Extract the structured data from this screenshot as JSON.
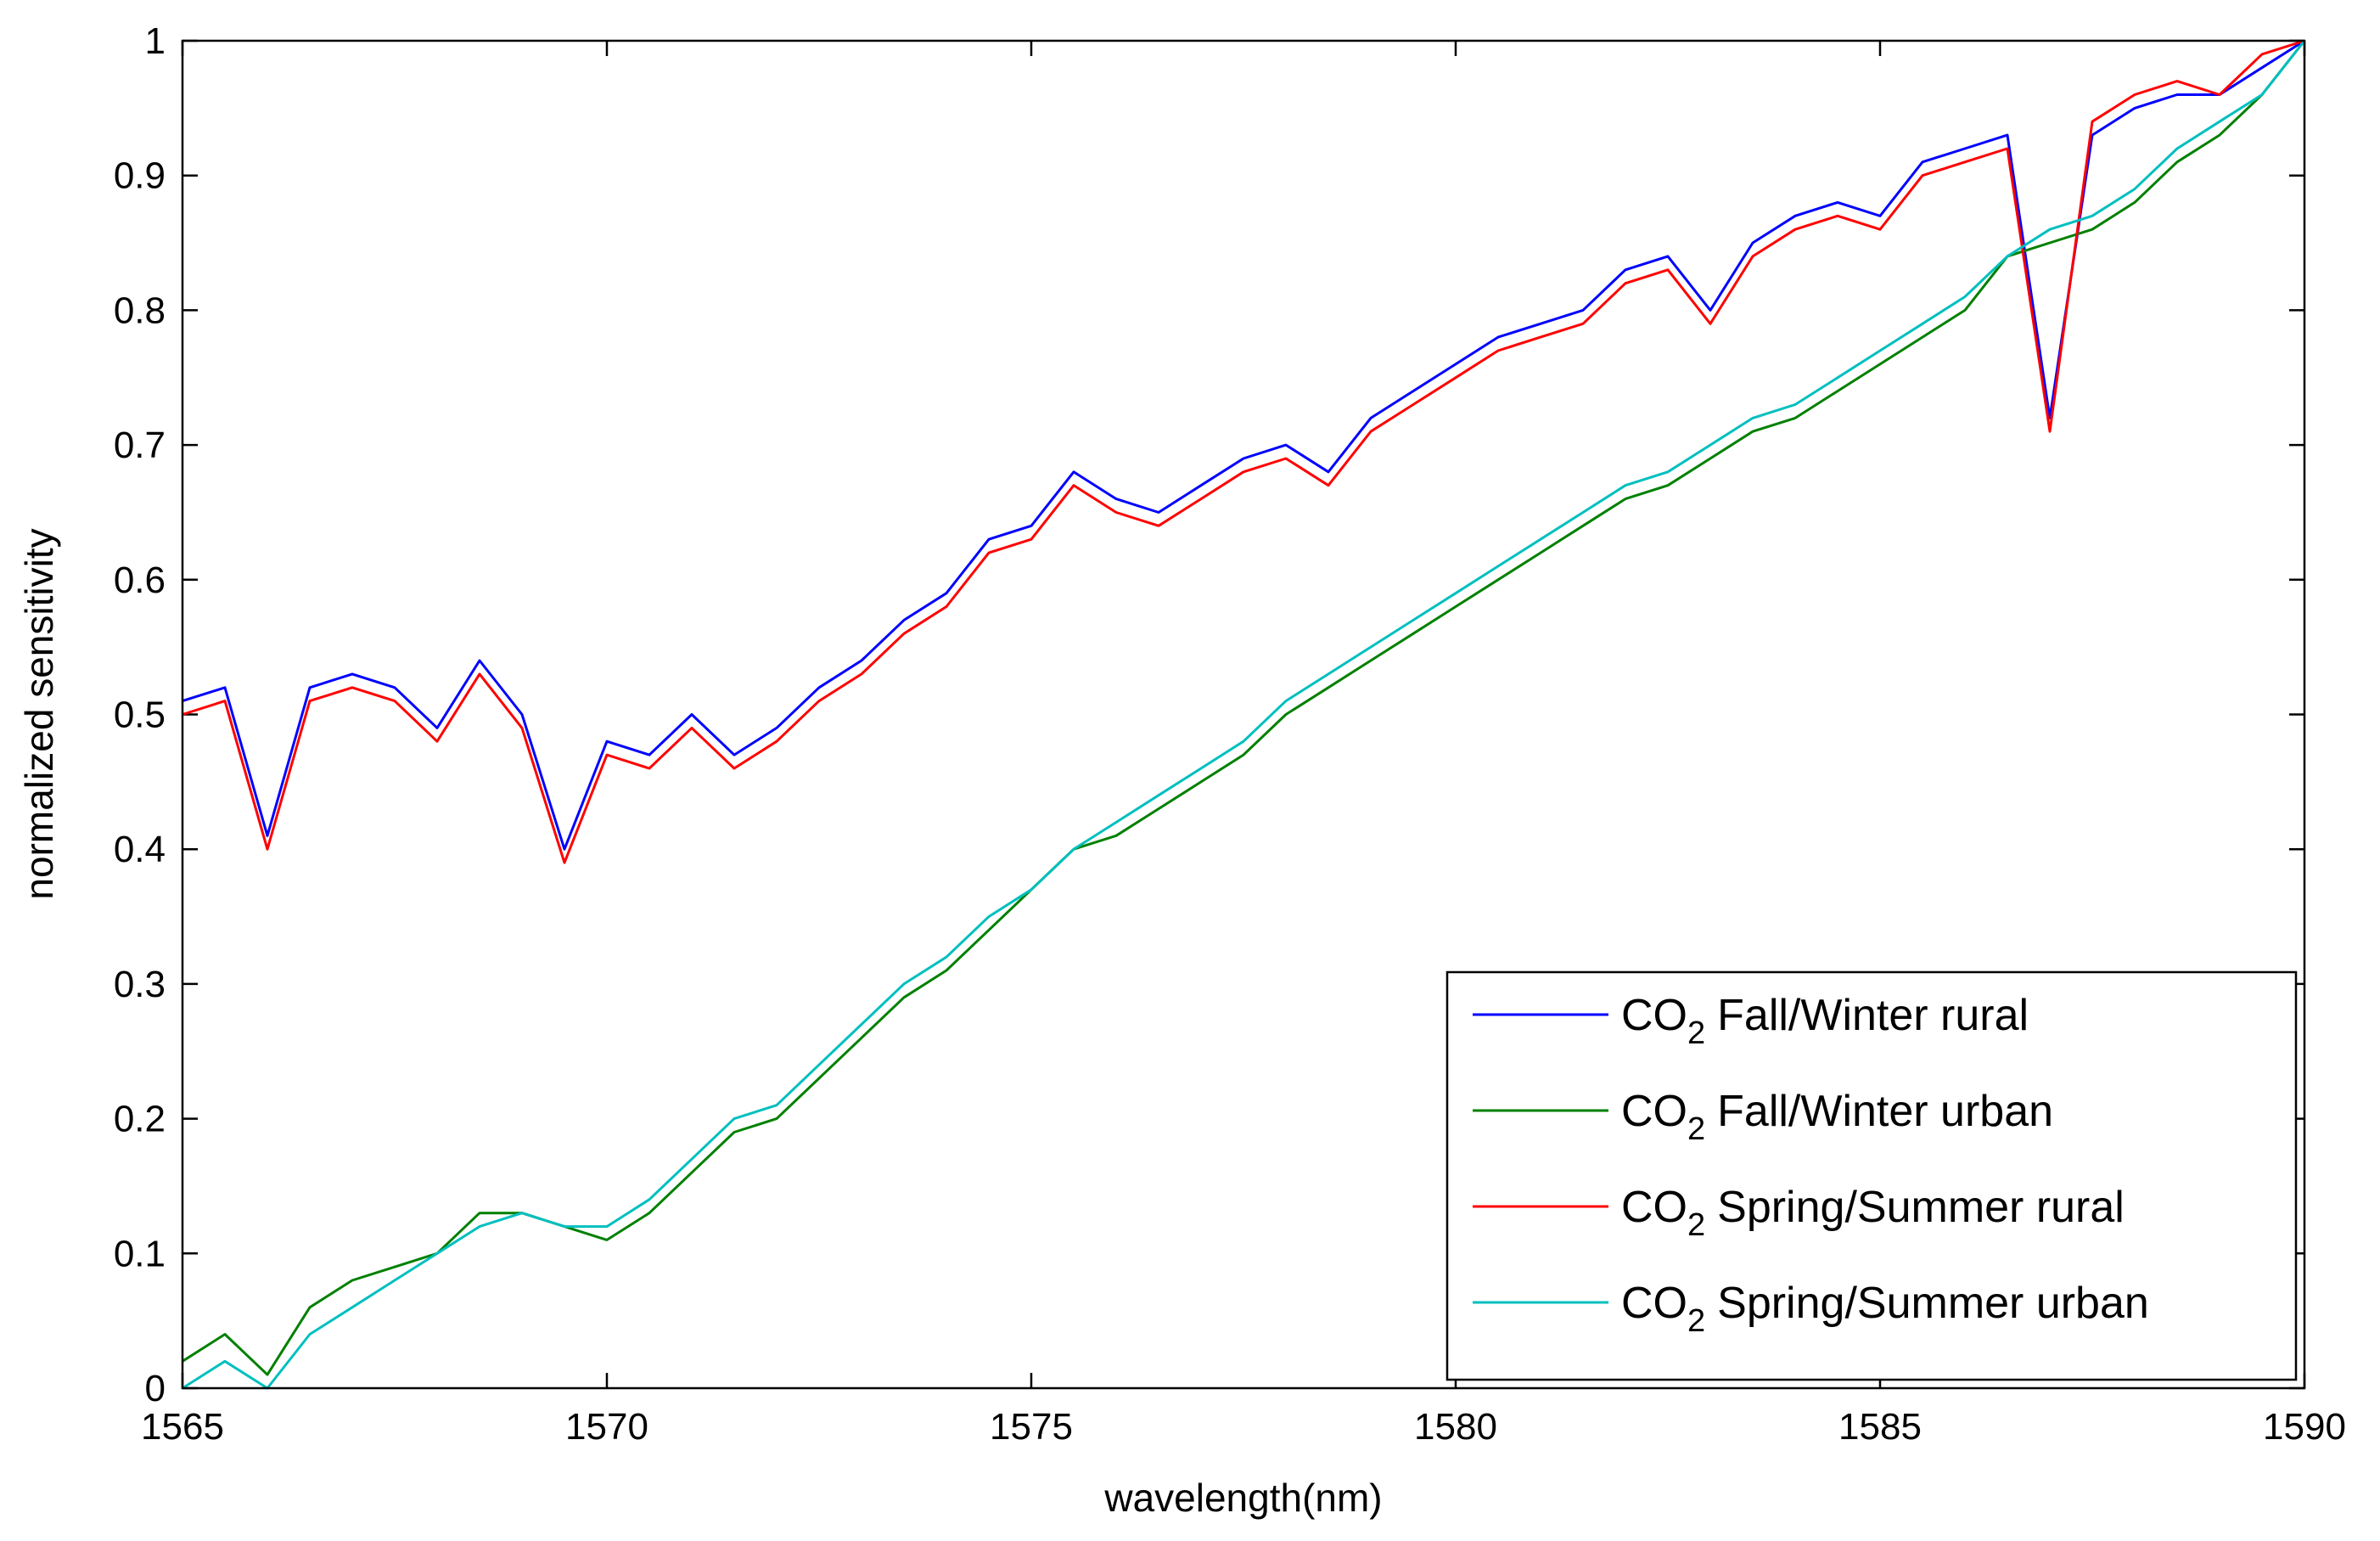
{
  "chart_data": {
    "type": "line",
    "title": "",
    "xlabel": "wavelength(nm)",
    "ylabel": "normalized sensitivity",
    "xlim": [
      1565,
      1590
    ],
    "ylim": [
      0,
      1
    ],
    "grid": false,
    "legend_position": "bottom-right",
    "x_ticks": [
      "1565",
      "1570",
      "1575",
      "1580",
      "1585",
      "1590"
    ],
    "y_ticks": [
      "0",
      "0.1",
      "0.2",
      "0.3",
      "0.4",
      "0.5",
      "0.6",
      "0.7",
      "0.8",
      "0.9",
      "1"
    ],
    "x": [
      1565.0,
      1565.5,
      1566.0,
      1566.5,
      1567.0,
      1567.5,
      1568.0,
      1568.5,
      1569.0,
      1569.5,
      1570.0,
      1570.5,
      1571.0,
      1571.5,
      1572.0,
      1572.5,
      1573.0,
      1573.5,
      1574.0,
      1574.5,
      1575.0,
      1575.5,
      1576.0,
      1576.5,
      1577.0,
      1577.5,
      1578.0,
      1578.5,
      1579.0,
      1579.5,
      1580.0,
      1580.5,
      1581.0,
      1581.5,
      1582.0,
      1582.5,
      1583.0,
      1583.5,
      1584.0,
      1584.5,
      1585.0,
      1585.5,
      1586.0,
      1586.5,
      1587.0,
      1587.5,
      1588.0,
      1588.5,
      1589.0,
      1589.5,
      1590.0
    ],
    "series": [
      {
        "name": "Fall/Winter rural",
        "legend_prefix": "CO",
        "legend_sub": "2",
        "color": "#0000ff",
        "values": [
          0.51,
          0.52,
          0.41,
          0.52,
          0.53,
          0.52,
          0.49,
          0.54,
          0.5,
          0.4,
          0.48,
          0.47,
          0.5,
          0.47,
          0.49,
          0.52,
          0.54,
          0.57,
          0.59,
          0.63,
          0.64,
          0.68,
          0.66,
          0.65,
          0.67,
          0.69,
          0.7,
          0.68,
          0.72,
          0.74,
          0.76,
          0.78,
          0.79,
          0.8,
          0.83,
          0.84,
          0.8,
          0.85,
          0.87,
          0.88,
          0.87,
          0.91,
          0.92,
          0.93,
          0.72,
          0.93,
          0.95,
          0.96,
          0.96,
          0.98,
          1.0
        ]
      },
      {
        "name": "Fall/Winter urban",
        "legend_prefix": "CO",
        "legend_sub": "2",
        "color": "#008000",
        "values": [
          0.02,
          0.04,
          0.01,
          0.06,
          0.08,
          0.09,
          0.1,
          0.13,
          0.13,
          0.12,
          0.11,
          0.13,
          0.16,
          0.19,
          0.2,
          0.23,
          0.26,
          0.29,
          0.31,
          0.34,
          0.37,
          0.4,
          0.41,
          0.43,
          0.45,
          0.47,
          0.5,
          0.52,
          0.54,
          0.56,
          0.58,
          0.6,
          0.62,
          0.64,
          0.66,
          0.67,
          0.69,
          0.71,
          0.72,
          0.74,
          0.76,
          0.78,
          0.8,
          0.84,
          0.85,
          0.86,
          0.88,
          0.91,
          0.93,
          0.96,
          1.0
        ]
      },
      {
        "name": "Spring/Summer rural",
        "legend_prefix": "CO",
        "legend_sub": "2",
        "color": "#ff0000",
        "values": [
          0.5,
          0.51,
          0.4,
          0.51,
          0.52,
          0.51,
          0.48,
          0.53,
          0.49,
          0.39,
          0.47,
          0.46,
          0.49,
          0.46,
          0.48,
          0.51,
          0.53,
          0.56,
          0.58,
          0.62,
          0.63,
          0.67,
          0.65,
          0.64,
          0.66,
          0.68,
          0.69,
          0.67,
          0.71,
          0.73,
          0.75,
          0.77,
          0.78,
          0.79,
          0.82,
          0.83,
          0.79,
          0.84,
          0.86,
          0.87,
          0.86,
          0.9,
          0.91,
          0.92,
          0.71,
          0.94,
          0.96,
          0.97,
          0.96,
          0.99,
          1.0
        ]
      },
      {
        "name": "Spring/Summer urban",
        "legend_prefix": "CO",
        "legend_sub": "2",
        "color": "#00bfbf",
        "values": [
          0.0,
          0.02,
          0.0,
          0.04,
          0.06,
          0.08,
          0.1,
          0.12,
          0.13,
          0.12,
          0.12,
          0.14,
          0.17,
          0.2,
          0.21,
          0.24,
          0.27,
          0.3,
          0.32,
          0.35,
          0.37,
          0.4,
          0.42,
          0.44,
          0.46,
          0.48,
          0.51,
          0.53,
          0.55,
          0.57,
          0.59,
          0.61,
          0.63,
          0.65,
          0.67,
          0.68,
          0.7,
          0.72,
          0.73,
          0.75,
          0.77,
          0.79,
          0.81,
          0.84,
          0.86,
          0.87,
          0.89,
          0.92,
          0.94,
          0.96,
          1.0
        ]
      }
    ]
  }
}
